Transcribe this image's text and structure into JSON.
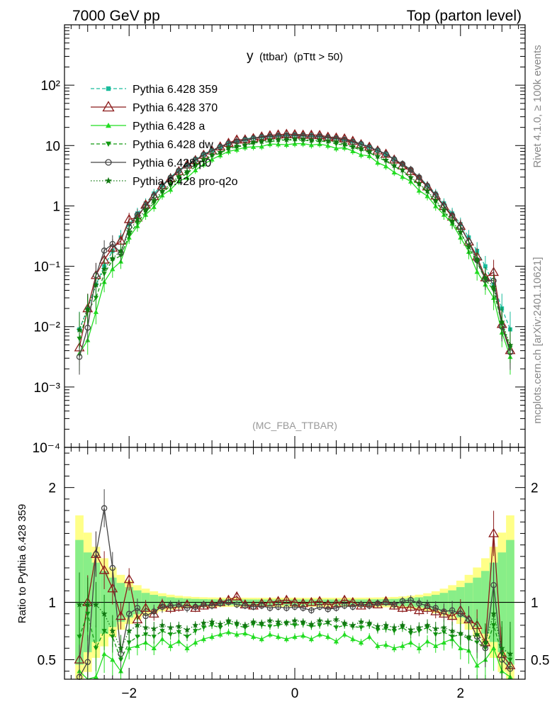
{
  "header": {
    "left": "7000 GeV pp",
    "right": "Top (parton level)"
  },
  "side_labels": {
    "rivet": "Rivet 4.1.0, ≥ 100k events",
    "mcplots": "mcplots.cern.ch [arXiv:2401.10621]"
  },
  "chart_data": {
    "type": "line",
    "title": "y (ttbar) (pTtt > 50)",
    "title_main": "y",
    "title_sub": "(ttbar)",
    "title_cut": "(pTtt > 50)",
    "analysis_label": "(MC_FBA_TTBAR)",
    "xlabel": "",
    "ylabel_ratio": "Ratio to Pythia 6.428 359",
    "xlim": [
      -2.78,
      2.78
    ],
    "ylim_main": [
      0.0001,
      1000
    ],
    "ylim_ratio": [
      0.33,
      2.35
    ],
    "yscale_main": "log",
    "x_ticks": [
      {
        "value": -2,
        "label": "−2"
      },
      {
        "value": 0,
        "label": "0"
      },
      {
        "value": 2,
        "label": "2"
      }
    ],
    "main_y_ticks": [
      {
        "value": 100,
        "label": "10²"
      },
      {
        "value": 10,
        "label": "10"
      },
      {
        "value": 1,
        "label": "1"
      },
      {
        "value": 0.1,
        "label": "10⁻¹"
      },
      {
        "value": 0.01,
        "label": "10⁻²"
      },
      {
        "value": 0.001,
        "label": "10⁻³"
      },
      {
        "value": 0.0001,
        "label": "10⁻⁴"
      }
    ],
    "ratio_y_ticks": [
      {
        "value": 2,
        "label": "2"
      },
      {
        "value": 1,
        "label": "1"
      },
      {
        "value": 0.5,
        "label": "0.5"
      }
    ],
    "legend_position": "top-left",
    "x": [
      -2.6,
      -2.5,
      -2.4,
      -2.3,
      -2.2,
      -2.1,
      -2.0,
      -1.9,
      -1.8,
      -1.7,
      -1.6,
      -1.5,
      -1.4,
      -1.3,
      -1.2,
      -1.1,
      -1.0,
      -0.9,
      -0.8,
      -0.7,
      -0.6,
      -0.5,
      -0.4,
      -0.3,
      -0.2,
      -0.1,
      0.0,
      0.1,
      0.2,
      0.3,
      0.4,
      0.5,
      0.6,
      0.7,
      0.8,
      0.9,
      1.0,
      1.1,
      1.2,
      1.3,
      1.4,
      1.5,
      1.6,
      1.7,
      1.8,
      1.9,
      2.0,
      2.1,
      2.2,
      2.3,
      2.4,
      2.5,
      2.6
    ],
    "series": [
      {
        "name": "Pythia 6.428 359",
        "color": "#1abc9c",
        "marker": "square",
        "dash": "dashed",
        "values": [
          0.009,
          0.02,
          0.05,
          0.1,
          0.18,
          0.3,
          0.5,
          0.75,
          1.1,
          1.6,
          2.2,
          3.0,
          3.9,
          4.9,
          6.0,
          7.2,
          8.4,
          9.6,
          10.8,
          11.9,
          12.8,
          13.6,
          14.2,
          14.7,
          15.0,
          15.2,
          15.3,
          15.2,
          15.0,
          14.7,
          14.2,
          13.6,
          12.8,
          11.9,
          10.8,
          9.6,
          8.4,
          7.2,
          6.0,
          4.9,
          3.9,
          3.0,
          2.2,
          1.6,
          1.1,
          0.75,
          0.5,
          0.3,
          0.18,
          0.1,
          0.05,
          0.02,
          0.009
        ]
      },
      {
        "name": "Pythia 6.428 370",
        "color": "#8b1a1a",
        "marker": "triangle-open",
        "dash": "solid",
        "ratio": [
          0.5,
          1.0,
          1.42,
          1.28,
          1.12,
          0.88,
          1.2,
          0.85,
          0.95,
          0.9,
          0.98,
          0.95,
          0.96,
          0.98,
          0.95,
          0.97,
          0.98,
          1.0,
          1.02,
          1.05,
          0.98,
          0.97,
          0.99,
          1.0,
          1.01,
          1.02,
          1.0,
          0.99,
          1.0,
          1.01,
          0.98,
          0.99,
          1.02,
          1.0,
          0.97,
          0.99,
          0.98,
          1.01,
          0.97,
          0.95,
          0.96,
          0.93,
          0.95,
          0.92,
          0.9,
          0.88,
          0.93,
          0.85,
          0.8,
          0.65,
          1.6,
          0.55,
          0.45
        ]
      },
      {
        "name": "Pythia 6.428 a",
        "color": "#22dd22",
        "marker": "triangle",
        "dash": "solid",
        "ratio": [
          0.4,
          0.3,
          0.35,
          0.55,
          0.5,
          0.4,
          0.6,
          0.62,
          0.65,
          0.6,
          0.68,
          0.62,
          0.66,
          0.6,
          0.65,
          0.68,
          0.7,
          0.72,
          0.74,
          0.72,
          0.73,
          0.7,
          0.68,
          0.72,
          0.7,
          0.68,
          0.7,
          0.71,
          0.68,
          0.72,
          0.7,
          0.66,
          0.72,
          0.68,
          0.65,
          0.7,
          0.62,
          0.63,
          0.6,
          0.62,
          0.65,
          0.6,
          0.66,
          0.62,
          0.65,
          0.68,
          0.6,
          0.58,
          0.45,
          0.5,
          0.6,
          0.4,
          0.35
        ]
      },
      {
        "name": "Pythia 6.428 dw",
        "color": "#119911",
        "marker": "triangle-down",
        "dash": "dashed",
        "ratio": [
          0.7,
          0.9,
          0.6,
          0.75,
          0.7,
          0.5,
          0.65,
          0.7,
          0.72,
          0.7,
          0.75,
          0.72,
          0.74,
          0.7,
          0.75,
          0.78,
          0.8,
          0.78,
          0.82,
          0.8,
          0.78,
          0.81,
          0.8,
          0.79,
          0.8,
          0.82,
          0.8,
          0.81,
          0.79,
          0.8,
          0.82,
          0.78,
          0.8,
          0.79,
          0.78,
          0.8,
          0.76,
          0.77,
          0.75,
          0.78,
          0.73,
          0.75,
          0.78,
          0.72,
          0.74,
          0.7,
          0.72,
          0.68,
          0.65,
          0.6,
          0.8,
          0.55,
          0.5
        ]
      },
      {
        "name": "Pythia 6.428 p0",
        "color": "#444444",
        "marker": "circle-open",
        "dash": "solid",
        "ratio": [
          0.35,
          0.48,
          1.42,
          1.82,
          1.3,
          0.55,
          0.9,
          0.95,
          0.88,
          0.92,
          0.96,
          0.97,
          0.98,
          0.95,
          0.96,
          0.98,
          0.97,
          0.99,
          1.0,
          0.98,
          0.97,
          0.96,
          0.97,
          0.95,
          0.96,
          0.95,
          0.96,
          0.95,
          0.93,
          0.96,
          0.94,
          0.95,
          0.97,
          0.96,
          0.98,
          0.97,
          0.99,
          1.0,
          0.98,
          1.01,
          1.02,
          0.99,
          0.97,
          0.95,
          0.92,
          0.93,
          0.9,
          0.85,
          0.7,
          0.6,
          1.15,
          0.5,
          0.42
        ]
      },
      {
        "name": "Pythia 6.428 pro-q2o",
        "color": "#117711",
        "marker": "star",
        "dash": "dotted",
        "ratio": [
          0.98,
          0.98,
          0.98,
          0.9,
          0.75,
          0.6,
          0.75,
          0.8,
          0.78,
          0.77,
          0.8,
          0.78,
          0.79,
          0.76,
          0.8,
          0.82,
          0.83,
          0.81,
          0.84,
          0.82,
          0.8,
          0.83,
          0.82,
          0.84,
          0.83,
          0.82,
          0.84,
          0.83,
          0.81,
          0.84,
          0.83,
          0.85,
          0.82,
          0.8,
          0.83,
          0.82,
          0.79,
          0.8,
          0.78,
          0.8,
          0.76,
          0.78,
          0.8,
          0.77,
          0.78,
          0.75,
          0.73,
          0.7,
          0.72,
          0.65,
          0.9,
          0.6,
          0.55
        ]
      }
    ]
  }
}
